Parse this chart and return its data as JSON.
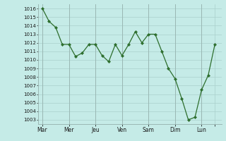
{
  "x_values": [
    0,
    0.5,
    1.0,
    1.5,
    2.0,
    2.5,
    3.0,
    3.5,
    4.0,
    4.5,
    5.0,
    5.5,
    6.0,
    6.5,
    7.0,
    7.5,
    8.0,
    8.5,
    9.0,
    9.5,
    10.0,
    10.5,
    11.0,
    11.5,
    12.0,
    12.5,
    13.0
  ],
  "y_values": [
    1016,
    1014.5,
    1013.8,
    1011.8,
    1011.8,
    1010.4,
    1010.8,
    1011.8,
    1011.8,
    1010.5,
    1009.8,
    1011.8,
    1010.5,
    1011.8,
    1013.3,
    1012.0,
    1013.0,
    1013.0,
    1011.0,
    1009.0,
    1007.8,
    1005.5,
    1003.0,
    1003.3,
    1006.5,
    1008.2,
    1011.8
  ],
  "x_tick_positions": [
    0,
    2,
    4,
    6,
    8,
    10,
    12,
    13
  ],
  "x_tick_labels": [
    "Mar",
    "Mer",
    "Jeu",
    "Ven",
    "Sam",
    "Dim",
    "Lun",
    ""
  ],
  "ylim_min": 1003,
  "ylim_max": 1016,
  "line_color": "#2d6e2d",
  "marker_color": "#2d6e2d",
  "bg_color": "#c5ebe7",
  "grid_color": "#aad0cc",
  "vline_color": "#9ab8b4"
}
